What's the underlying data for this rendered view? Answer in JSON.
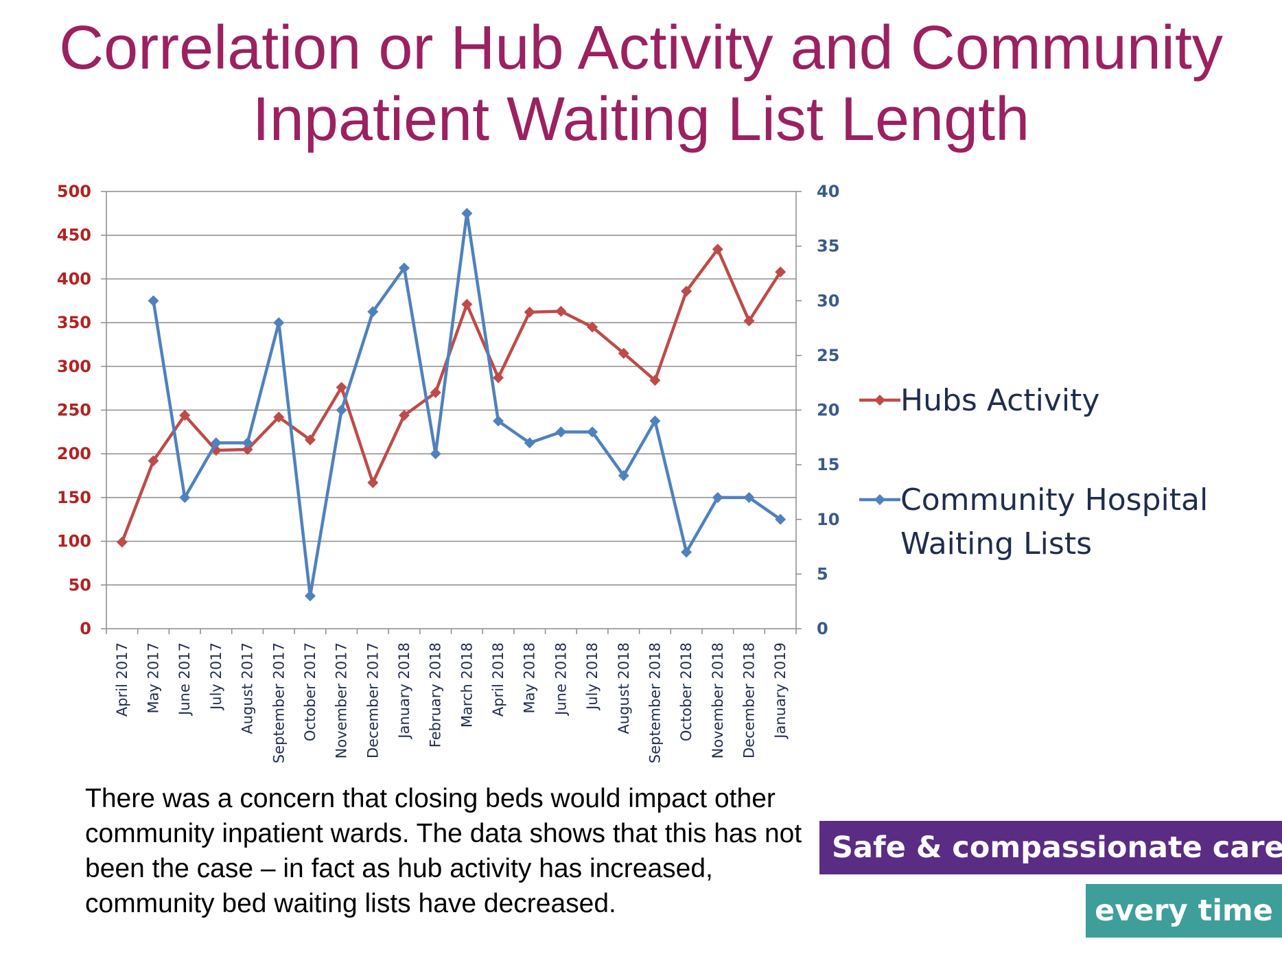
{
  "title": {
    "line1": "Correlation or Hub Activity and Community",
    "line2": "Inpatient Waiting List Length"
  },
  "chart_data": {
    "type": "line",
    "categories": [
      "April 2017",
      "May 2017",
      "June 2017",
      "July 2017",
      "August 2017",
      "September 2017",
      "October 2017",
      "November 2017",
      "December 2017",
      "January 2018",
      "February 2018",
      "March 2018",
      "April 2018",
      "May 2018",
      "June  2018",
      "July 2018",
      "August 2018",
      "September 2018",
      "October 2018",
      "November 2018",
      "December 2018",
      "January 2019"
    ],
    "series": [
      {
        "name": "Hubs Activity",
        "axis": "left",
        "color": "#BE4B48",
        "values": [
          99,
          192,
          244,
          204,
          205,
          242,
          216,
          276,
          167,
          244,
          270,
          371,
          287,
          362,
          363,
          345,
          315,
          284,
          386,
          434,
          352,
          408
        ]
      },
      {
        "name": "Community Hospital Waiting Lists",
        "legend_lines": [
          "Community Hospital",
          "Waiting Lists"
        ],
        "axis": "right",
        "color": "#4F81BD",
        "values": [
          null,
          30,
          12,
          17,
          17,
          28,
          3,
          20,
          29,
          33,
          16,
          38,
          19,
          17,
          18,
          18,
          14,
          19,
          7,
          12,
          12,
          10
        ]
      }
    ],
    "y_left": {
      "min": 0,
      "max": 500,
      "step": 50,
      "ticks": [
        "0",
        "50",
        "100",
        "150",
        "200",
        "250",
        "300",
        "350",
        "400",
        "450",
        "500"
      ],
      "color": "#B22222"
    },
    "y_right": {
      "min": 0,
      "max": 40,
      "step": 5,
      "ticks": [
        "0",
        "5",
        "10",
        "15",
        "20",
        "25",
        "30",
        "35",
        "40"
      ],
      "color": "#3A5A8C"
    },
    "grid": true,
    "legend_position": "right"
  },
  "caption": "There was a concern that closing beds would impact other community inpatient wards.  The data shows that this has not been the case – in fact as hub activity has increased, community bed waiting lists have decreased.",
  "branding": {
    "line1": "Safe & compassionate care,",
    "line2": "every time",
    "color1": "#5B2C83",
    "color2": "#3E9E9A"
  }
}
